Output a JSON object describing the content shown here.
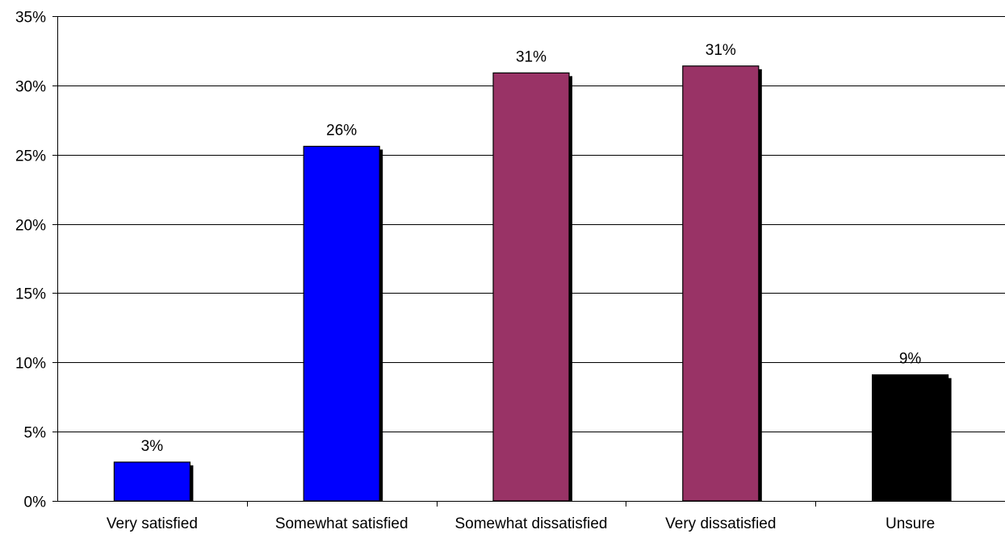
{
  "chart_data": {
    "type": "bar",
    "categories": [
      "Very satisfied",
      "Somewhat satisfied",
      "Somewhat dissatisfied",
      "Very dissatisfied",
      "Unsure"
    ],
    "values": [
      2.8,
      25.6,
      30.9,
      31.4,
      9.1
    ],
    "data_labels": [
      "3%",
      "26%",
      "31%",
      "31%",
      "9%"
    ],
    "bar_colors": [
      "#0000FF",
      "#0000FF",
      "#993366",
      "#993366",
      "#000000"
    ],
    "title": "",
    "xlabel": "",
    "ylabel": "",
    "ylim": [
      0,
      35
    ],
    "y_ticks": [
      0,
      5,
      10,
      15,
      20,
      25,
      30,
      35
    ],
    "y_tick_labels": [
      "0%",
      "5%",
      "10%",
      "15%",
      "20%",
      "25%",
      "30%",
      "35%"
    ],
    "grid": true,
    "legend": "none"
  }
}
